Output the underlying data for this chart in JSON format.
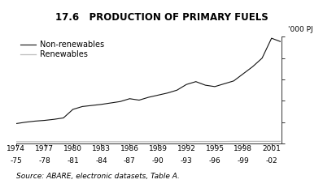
{
  "title": "17.6   PRODUCTION OF PRIMARY FUELS",
  "ylabel": "'000 PJ",
  "source_text": "Source: ABARE, electronic datasets, Table A.",
  "xlim": [
    1974,
    2002
  ],
  "ylim": [
    0,
    15
  ],
  "yticks": [
    0,
    3,
    6,
    9,
    12,
    15
  ],
  "x_tick_years": [
    1974,
    1977,
    1980,
    1983,
    1986,
    1989,
    1992,
    1995,
    1998,
    2001
  ],
  "x_tick_labels_top": [
    "1974",
    "1977",
    "1980",
    "1983",
    "1986",
    "1989",
    "1992",
    "1995",
    "1998",
    "2001"
  ],
  "x_tick_labels_bot": [
    "-75",
    "-78",
    "-81",
    "-84",
    "-87",
    "-90",
    "-93",
    "-96",
    "-99",
    "-02"
  ],
  "non_renewables_x": [
    1974,
    1975,
    1976,
    1977,
    1978,
    1979,
    1980,
    1981,
    1982,
    1983,
    1984,
    1985,
    1986,
    1987,
    1988,
    1989,
    1990,
    1991,
    1992,
    1993,
    1994,
    1995,
    1996,
    1997,
    1998,
    1999,
    2000,
    2001,
    2002
  ],
  "non_renewables_y": [
    2.8,
    3.0,
    3.15,
    3.25,
    3.4,
    3.6,
    4.8,
    5.2,
    5.35,
    5.5,
    5.7,
    5.9,
    6.3,
    6.1,
    6.5,
    6.8,
    7.1,
    7.5,
    8.3,
    8.7,
    8.2,
    8.0,
    8.4,
    8.8,
    9.8,
    10.8,
    12.0,
    14.8,
    14.3
  ],
  "renewables_x": [
    1974,
    1975,
    1976,
    1977,
    1978,
    1979,
    1980,
    1981,
    1982,
    1983,
    1984,
    1985,
    1986,
    1987,
    1988,
    1989,
    1990,
    1991,
    1992,
    1993,
    1994,
    1995,
    1996,
    1997,
    1998,
    1999,
    2000,
    2001,
    2002
  ],
  "renewables_y": [
    0.25,
    0.25,
    0.25,
    0.25,
    0.25,
    0.25,
    0.25,
    0.25,
    0.25,
    0.25,
    0.25,
    0.25,
    0.25,
    0.25,
    0.25,
    0.25,
    0.25,
    0.25,
    0.25,
    0.28,
    0.28,
    0.28,
    0.28,
    0.3,
    0.3,
    0.3,
    0.3,
    0.3,
    0.3
  ],
  "non_renewables_color": "#111111",
  "renewables_color": "#bbbbbb",
  "background_color": "#ffffff",
  "title_fontsize": 8.5,
  "legend_fontsize": 7,
  "axis_fontsize": 6.5,
  "source_fontsize": 6.5
}
